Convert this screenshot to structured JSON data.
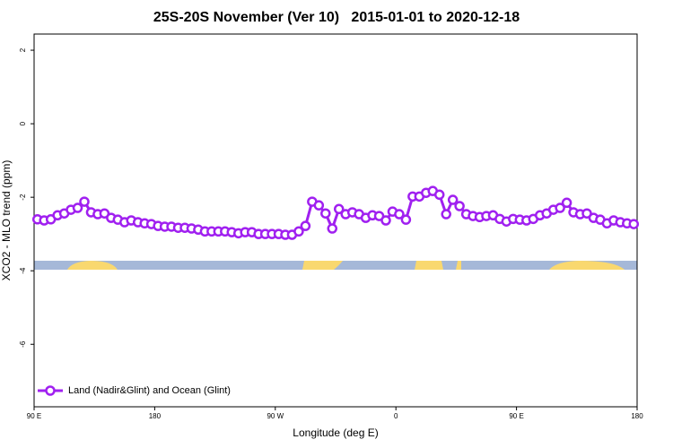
{
  "chart_data": {
    "type": "line",
    "title": "25S-20S November (Ver 10)   2015-01-01 to 2020-12-18",
    "x_label": "Longitude (deg E)",
    "y_label": "XCO2 - MLO trend (ppm)",
    "xlim": [
      90,
      540
    ],
    "ylim": [
      -7.7,
      2.44
    ],
    "xticks": [
      {
        "value": 90,
        "label": "90 E"
      },
      {
        "value": 180,
        "label": "180"
      },
      {
        "value": 270,
        "label": "90 W"
      },
      {
        "value": 360,
        "label": "0"
      },
      {
        "value": 450,
        "label": "90 E"
      },
      {
        "value": 540,
        "label": "180"
      }
    ],
    "yticks": [
      -6,
      -4,
      -2,
      0,
      2
    ],
    "legend_position": "lower left",
    "x": [
      92.5,
      97.5,
      102.5,
      107.5,
      112.5,
      117.5,
      122.5,
      127.5,
      132.5,
      137.5,
      142.5,
      147.5,
      152.5,
      157.5,
      162.5,
      167.5,
      172.5,
      177.5,
      182.5,
      187.5,
      192.5,
      197.5,
      202.5,
      207.5,
      212.5,
      217.5,
      222.5,
      227.5,
      232.5,
      237.5,
      242.5,
      247.5,
      252.5,
      257.5,
      262.5,
      267.5,
      272.5,
      277.5,
      282.5,
      287.5,
      292.5,
      297.5,
      302.5,
      307.5,
      312.5,
      317.5,
      322.5,
      327.5,
      332.5,
      337.5,
      342.5,
      347.5,
      352.5,
      357.5,
      362.5,
      367.5,
      372.5,
      377.5,
      382.5,
      387.5,
      392.5,
      397.5,
      402.5,
      407.5,
      412.5,
      417.5,
      422.5,
      427.5,
      432.5,
      437.5,
      442.5,
      447.5,
      452.5,
      457.5,
      462.5,
      467.5,
      472.5,
      477.5,
      482.5,
      487.5,
      492.5,
      497.5,
      502.5,
      507.5,
      512.5,
      517.5,
      522.5,
      527.5,
      532.5,
      537.5
    ],
    "series": [
      {
        "name": "Land (Nadir&Glint) and Ocean (Glint)",
        "color": "#a020f0",
        "values": [
          -2.6,
          -2.63,
          -2.6,
          -2.49,
          -2.44,
          -2.34,
          -2.29,
          -2.12,
          -2.41,
          -2.46,
          -2.44,
          -2.56,
          -2.61,
          -2.68,
          -2.63,
          -2.68,
          -2.71,
          -2.73,
          -2.78,
          -2.8,
          -2.8,
          -2.83,
          -2.83,
          -2.85,
          -2.88,
          -2.93,
          -2.93,
          -2.93,
          -2.93,
          -2.95,
          -2.98,
          -2.95,
          -2.95,
          -3.0,
          -3.0,
          -3.0,
          -3.0,
          -3.02,
          -3.02,
          -2.93,
          -2.78,
          -2.12,
          -2.22,
          -2.44,
          -2.85,
          -2.32,
          -2.46,
          -2.41,
          -2.46,
          -2.56,
          -2.49,
          -2.51,
          -2.63,
          -2.39,
          -2.46,
          -2.61,
          -1.98,
          -1.98,
          -1.88,
          -1.83,
          -1.93,
          -2.46,
          -2.07,
          -2.24,
          -2.46,
          -2.51,
          -2.54,
          -2.51,
          -2.49,
          -2.59,
          -2.66,
          -2.59,
          -2.61,
          -2.63,
          -2.59,
          -2.49,
          -2.44,
          -2.34,
          -2.29,
          -2.15,
          -2.41,
          -2.46,
          -2.44,
          -2.56,
          -2.61,
          -2.71,
          -2.63,
          -2.68,
          -2.71,
          -2.73
        ]
      }
    ]
  }
}
